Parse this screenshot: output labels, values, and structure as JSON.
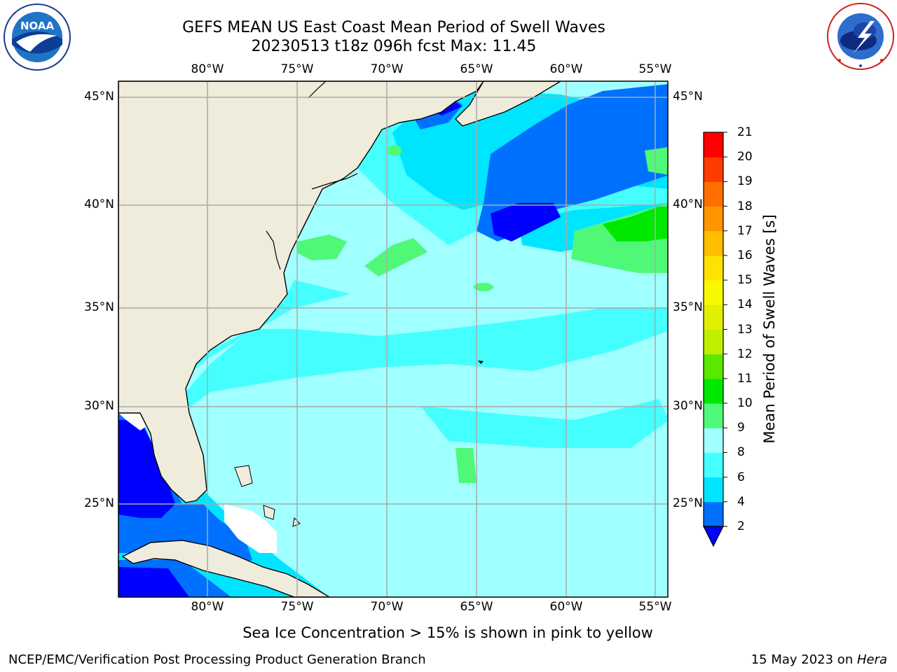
{
  "title": {
    "line1": "GEFS MEAN US East Coast Mean Period of Swell Waves",
    "line2": "20230513 t18z 096h fcst   Max: 11.45"
  },
  "logos": {
    "left": {
      "name": "NOAA",
      "text": "NOAA",
      "ring_text": "NATIONAL OCEANIC AND ATMOSPHERIC ADMINISTRATION · U.S. DEPARTMENT OF COMMERCE"
    },
    "right": {
      "name": "National Weather Service",
      "ring_text": "NATIONAL WEATHER SERVICE"
    }
  },
  "map": {
    "longitude_labels": [
      "80°W",
      "75°W",
      "70°W",
      "65°W",
      "60°W",
      "55°W"
    ],
    "latitude_labels": [
      "45°N",
      "40°N",
      "35°N",
      "30°N",
      "25°N"
    ],
    "extent": {
      "lon_min": -85,
      "lon_max": -54.6,
      "lat_min": 20,
      "lat_max": 45.8
    },
    "colors": {
      "land": "#efecdc",
      "coastline": "#000000",
      "grid": "#aaaaaa",
      "missing": "#ffffff"
    }
  },
  "colorbar": {
    "title": "Mean Period of Swell Waves [s]",
    "ticks": [
      "2",
      "4",
      "6",
      "8",
      "9",
      "10",
      "11",
      "12",
      "13",
      "14",
      "15",
      "16",
      "17",
      "18",
      "19",
      "20",
      "21"
    ],
    "levels": [
      {
        "from": 0,
        "to": 2,
        "color": "#0000ff",
        "extend": true
      },
      {
        "from": 2,
        "to": 4,
        "color": "#0070ff"
      },
      {
        "from": 4,
        "to": 6,
        "color": "#00e5ff"
      },
      {
        "from": 6,
        "to": 8,
        "color": "#45ffff"
      },
      {
        "from": 8,
        "to": 9,
        "color": "#a0ffff"
      },
      {
        "from": 9,
        "to": 10,
        "color": "#50f878"
      },
      {
        "from": 10,
        "to": 11,
        "color": "#00e800"
      },
      {
        "from": 11,
        "to": 12,
        "color": "#5ae800"
      },
      {
        "from": 12,
        "to": 13,
        "color": "#c0f000"
      },
      {
        "from": 13,
        "to": 14,
        "color": "#e0f000"
      },
      {
        "from": 14,
        "to": 15,
        "color": "#f8f800"
      },
      {
        "from": 15,
        "to": 16,
        "color": "#ffe200"
      },
      {
        "from": 16,
        "to": 17,
        "color": "#ffbe00"
      },
      {
        "from": 17,
        "to": 18,
        "color": "#ff9600"
      },
      {
        "from": 18,
        "to": 19,
        "color": "#ff6e00"
      },
      {
        "from": 19,
        "to": 20,
        "color": "#ff3c00"
      },
      {
        "from": 20,
        "to": 21,
        "color": "#ff0000"
      }
    ]
  },
  "footer": {
    "ice_note": "Sea Ice Concentration > 15% is shown in pink to yellow",
    "left": "NCEP/EMC/Verification Post Processing Product Generation Branch",
    "date": "15 May 2023 on ",
    "host": "Hera"
  }
}
